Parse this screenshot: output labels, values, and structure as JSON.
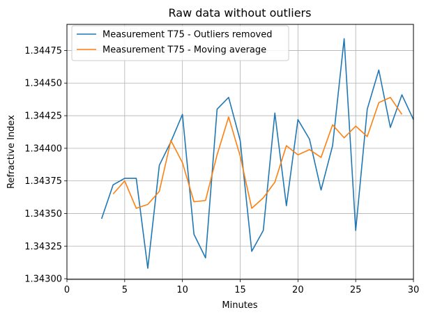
{
  "chart_data": {
    "type": "line",
    "title": "Raw data without outliers",
    "xlabel": "Minutes",
    "ylabel": "Refractive Index",
    "xlim": [
      0,
      30
    ],
    "ylim": [
      1.342995,
      1.34495
    ],
    "xticks": [
      "0",
      "5",
      "10",
      "15",
      "20",
      "25",
      "30"
    ],
    "yticks": [
      "1.34300",
      "1.34325",
      "1.34350",
      "1.34375",
      "1.34400",
      "1.34425",
      "1.34450",
      "1.34475"
    ],
    "grid": true,
    "legend_position": "top-left",
    "series": [
      {
        "name": "Measurement T75 - Outliers removed",
        "color": "#1f77b4",
        "x": [
          3,
          4,
          5,
          6,
          7,
          8,
          9,
          10,
          11,
          12,
          13,
          14,
          15,
          16,
          17,
          18,
          19,
          20,
          21,
          22,
          23,
          24,
          25,
          26,
          27,
          28,
          29,
          30
        ],
        "values": [
          1.34346,
          1.34372,
          1.34377,
          1.34377,
          1.34308,
          1.34387,
          1.34405,
          1.34426,
          1.34334,
          1.34316,
          1.3443,
          1.34439,
          1.34406,
          1.34321,
          1.34337,
          1.34427,
          1.34356,
          1.34422,
          1.34407,
          1.34368,
          1.34402,
          1.34484,
          1.34337,
          1.3443,
          1.3446,
          1.34416,
          1.34441,
          1.34422
        ]
      },
      {
        "name": "Measurement T75 - Moving average",
        "color": "#ff7f0e",
        "x": [
          4,
          5,
          6,
          7,
          8,
          9,
          10,
          11,
          12,
          13,
          14,
          15,
          16,
          17,
          18,
          19,
          20,
          21,
          22,
          23,
          24,
          25,
          26,
          27,
          28,
          29
        ],
        "values": [
          1.34365,
          1.34375,
          1.34354,
          1.34357,
          1.34367,
          1.34406,
          1.34389,
          1.34359,
          1.3436,
          1.34395,
          1.34424,
          1.34394,
          1.34354,
          1.34362,
          1.34374,
          1.34402,
          1.34395,
          1.34399,
          1.34393,
          1.34418,
          1.34408,
          1.34417,
          1.34409,
          1.34435,
          1.34439,
          1.34426
        ]
      }
    ]
  }
}
